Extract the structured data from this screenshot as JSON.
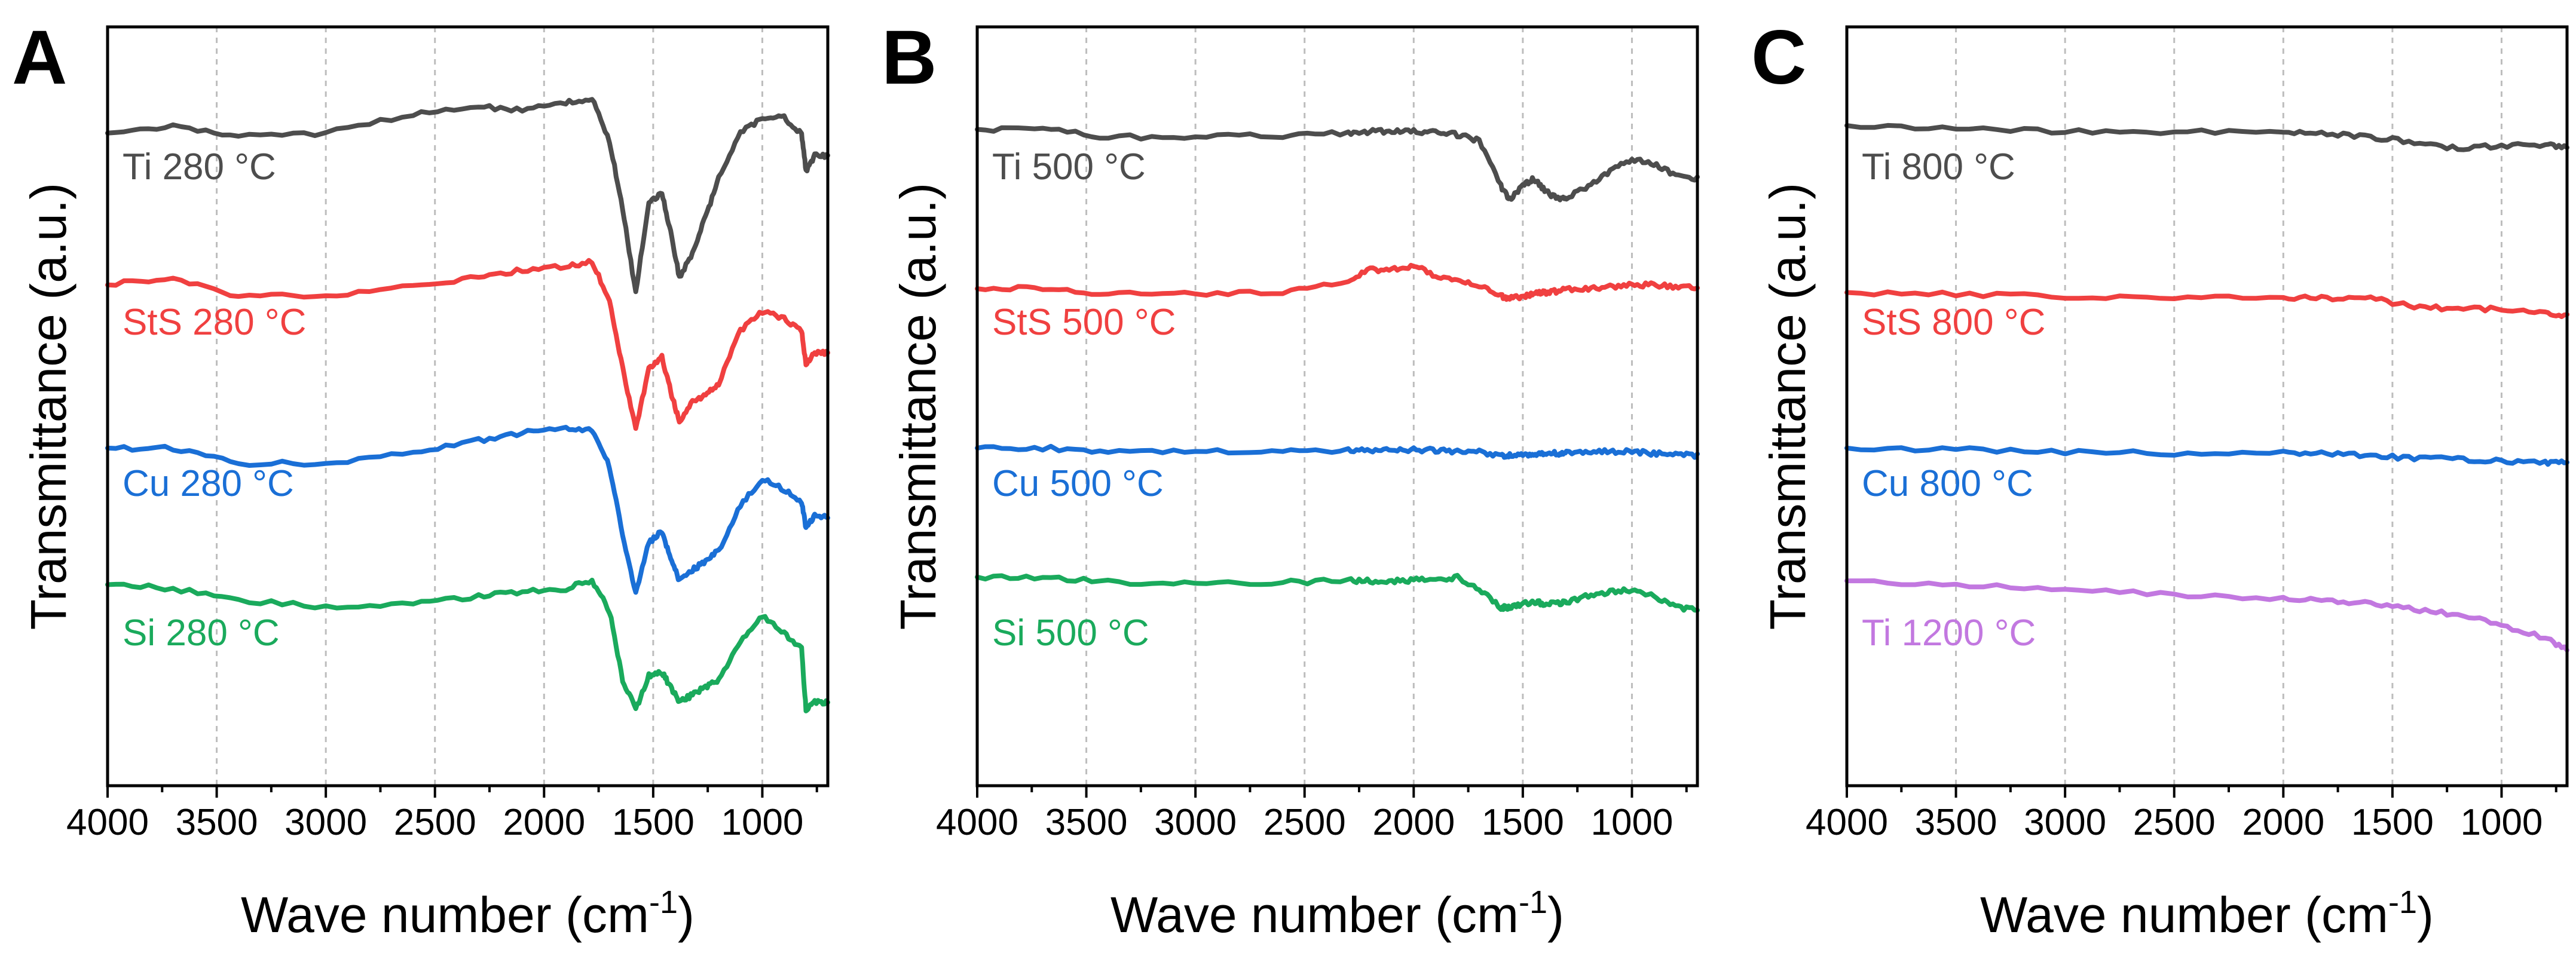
{
  "chart_data": [
    {
      "type": "line",
      "panel_label": "A",
      "xlabel": "Wave number (cm",
      "xlabel_sup": "-1",
      "xlabel_close": ")",
      "ylabel": "Transmittance (a.u.)",
      "xlim": [
        4000,
        700
      ],
      "xticks": [
        4000,
        3500,
        3000,
        2500,
        2000,
        1500,
        1000
      ],
      "x": [
        4000,
        3700,
        3400,
        3000,
        2600,
        2300,
        2100,
        1900,
        1780,
        1700,
        1640,
        1580,
        1520,
        1460,
        1420,
        1380,
        1320,
        1260,
        1200,
        1100,
        1000,
        900,
        820,
        800,
        760,
        700
      ],
      "series": [
        {
          "name": "Ti 280 °C",
          "color": "#4d4d4d",
          "values": [
            0.86,
            0.87,
            0.855,
            0.86,
            0.885,
            0.895,
            0.89,
            0.9,
            0.905,
            0.85,
            0.76,
            0.65,
            0.77,
            0.78,
            0.73,
            0.67,
            0.7,
            0.75,
            0.8,
            0.86,
            0.88,
            0.88,
            0.86,
            0.81,
            0.83,
            0.83
          ]
        },
        {
          "name": "StS 280 °C",
          "color": "#f04040",
          "values": [
            0.66,
            0.67,
            0.645,
            0.645,
            0.66,
            0.67,
            0.68,
            0.685,
            0.69,
            0.64,
            0.55,
            0.47,
            0.55,
            0.565,
            0.52,
            0.48,
            0.505,
            0.515,
            0.53,
            0.6,
            0.625,
            0.615,
            0.6,
            0.555,
            0.57,
            0.57
          ]
        },
        {
          "name": "Cu 280 °C",
          "color": "#1a6fd6",
          "values": [
            0.445,
            0.445,
            0.425,
            0.425,
            0.44,
            0.455,
            0.465,
            0.47,
            0.47,
            0.42,
            0.33,
            0.255,
            0.32,
            0.335,
            0.3,
            0.27,
            0.285,
            0.295,
            0.31,
            0.37,
            0.405,
            0.39,
            0.375,
            0.34,
            0.355,
            0.355
          ]
        },
        {
          "name": "Si 280 °C",
          "color": "#1aaa5c",
          "values": [
            0.265,
            0.26,
            0.245,
            0.235,
            0.24,
            0.25,
            0.255,
            0.26,
            0.27,
            0.23,
            0.14,
            0.1,
            0.145,
            0.15,
            0.13,
            0.11,
            0.12,
            0.13,
            0.14,
            0.19,
            0.225,
            0.2,
            0.18,
            0.1,
            0.11,
            0.11
          ]
        }
      ]
    },
    {
      "type": "line",
      "panel_label": "B",
      "xlabel": "Wave number (cm",
      "xlabel_sup": "-1",
      "xlabel_close": ")",
      "ylabel": "Transmittance (a.u.)",
      "xlim": [
        4000,
        700
      ],
      "xticks": [
        4000,
        3500,
        3000,
        2500,
        2000,
        1500,
        1000
      ],
      "x": [
        4000,
        3700,
        3400,
        3000,
        2600,
        2300,
        2200,
        2100,
        2000,
        1900,
        1800,
        1700,
        1600,
        1560,
        1500,
        1450,
        1400,
        1340,
        1300,
        1200,
        1100,
        1000,
        900,
        800,
        700
      ],
      "series": [
        {
          "name": "Ti 500 °C",
          "color": "#4d4d4d",
          "values": [
            0.865,
            0.865,
            0.855,
            0.855,
            0.857,
            0.86,
            0.862,
            0.862,
            0.862,
            0.862,
            0.858,
            0.85,
            0.79,
            0.772,
            0.79,
            0.8,
            0.785,
            0.773,
            0.775,
            0.79,
            0.81,
            0.825,
            0.82,
            0.805,
            0.8
          ]
        },
        {
          "name": "StS 500 °C",
          "color": "#f04040",
          "values": [
            0.655,
            0.655,
            0.648,
            0.648,
            0.65,
            0.665,
            0.68,
            0.68,
            0.685,
            0.672,
            0.665,
            0.66,
            0.645,
            0.642,
            0.645,
            0.648,
            0.65,
            0.652,
            0.655,
            0.655,
            0.658,
            0.66,
            0.66,
            0.658,
            0.655
          ]
        },
        {
          "name": "Cu 500 °C",
          "color": "#1a6fd6",
          "values": [
            0.445,
            0.445,
            0.44,
            0.44,
            0.44,
            0.442,
            0.442,
            0.443,
            0.443,
            0.442,
            0.44,
            0.44,
            0.435,
            0.435,
            0.437,
            0.437,
            0.437,
            0.438,
            0.438,
            0.44,
            0.44,
            0.44,
            0.438,
            0.436,
            0.435
          ]
        },
        {
          "name": "Si 500 °C",
          "color": "#1aaa5c",
          "values": [
            0.275,
            0.275,
            0.268,
            0.268,
            0.268,
            0.27,
            0.27,
            0.27,
            0.271,
            0.271,
            0.275,
            0.26,
            0.235,
            0.235,
            0.24,
            0.242,
            0.24,
            0.24,
            0.242,
            0.25,
            0.255,
            0.258,
            0.25,
            0.235,
            0.232
          ]
        }
      ]
    },
    {
      "type": "line",
      "panel_label": "C",
      "xlabel": "Wave number (cm",
      "xlabel_sup": "-1",
      "xlabel_close": ")",
      "ylabel": "Transmittance (a.u.)",
      "xlim": [
        4000,
        700
      ],
      "xticks": [
        4000,
        3500,
        3000,
        2500,
        2000,
        1500,
        1000
      ],
      "x": [
        4000,
        3500,
        3000,
        2500,
        2000,
        1800,
        1600,
        1400,
        1200,
        1000,
        800,
        700
      ],
      "series": [
        {
          "name": "Ti 800 °C",
          "color": "#4d4d4d",
          "values": [
            0.87,
            0.865,
            0.862,
            0.862,
            0.862,
            0.86,
            0.855,
            0.848,
            0.84,
            0.843,
            0.845,
            0.84
          ]
        },
        {
          "name": "StS 800 °C",
          "color": "#f04040",
          "values": [
            0.65,
            0.648,
            0.645,
            0.644,
            0.643,
            0.643,
            0.642,
            0.632,
            0.628,
            0.628,
            0.625,
            0.618
          ]
        },
        {
          "name": "Cu 800 °C",
          "color": "#1a6fd6",
          "values": [
            0.445,
            0.443,
            0.44,
            0.438,
            0.438,
            0.437,
            0.435,
            0.432,
            0.43,
            0.428,
            0.426,
            0.425
          ]
        },
        {
          "name": "Ti 1200 °C",
          "color": "#c278e0",
          "values": [
            0.27,
            0.265,
            0.258,
            0.252,
            0.246,
            0.244,
            0.24,
            0.233,
            0.225,
            0.212,
            0.195,
            0.18
          ]
        }
      ]
    }
  ]
}
